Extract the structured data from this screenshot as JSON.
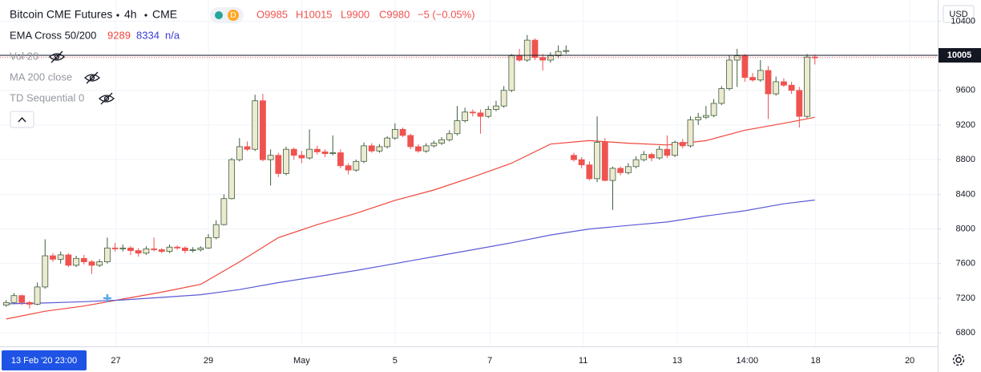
{
  "chart_data": {
    "type": "candlestick",
    "title": "Bitcoin CME Futures",
    "interval": "4h",
    "exchange": "CME",
    "badge": "D",
    "ohlc_text": [
      "O9985",
      "H10015",
      "L9900",
      "C9980",
      "−5 (−0.05%)"
    ],
    "indicators": [
      {
        "name": "EMA Cross 50/200",
        "values": [
          9289,
          8334,
          "n/a"
        ]
      },
      {
        "name": "Vol 20"
      },
      {
        "name": "MA 200 close"
      },
      {
        "name": "TD Sequential 0"
      }
    ],
    "currency": "USD",
    "last_price": 10005,
    "crosshair_label": "13 Feb '20 23:00",
    "ylim": [
      6644,
      10644
    ],
    "yticks": [
      6800,
      7200,
      7600,
      8000,
      8400,
      8800,
      9200,
      9600,
      10000,
      10400
    ],
    "xlim": [
      -0.8,
      119.8
    ],
    "xticks": [
      {
        "value": 14.1,
        "label": "27"
      },
      {
        "value": 26,
        "label": "29"
      },
      {
        "value": 38,
        "label": "May"
      },
      {
        "value": 50,
        "label": "5"
      },
      {
        "value": 62.2,
        "label": "7"
      },
      {
        "value": 74.2,
        "label": "11"
      },
      {
        "value": 86.3,
        "label": "13"
      },
      {
        "value": 95.3,
        "label": "14:00"
      },
      {
        "value": 104.1,
        "label": "18"
      },
      {
        "value": 116.2,
        "label": "20"
      }
    ],
    "grid": true,
    "up_color": "#ecead0",
    "down_color": "#ef5350",
    "ohlc": [
      [
        7120,
        7180,
        7100,
        7150
      ],
      [
        7150,
        7260,
        7140,
        7230
      ],
      [
        7230,
        7240,
        7120,
        7150
      ],
      [
        7150,
        7170,
        7080,
        7130
      ],
      [
        7130,
        7380,
        7120,
        7330
      ],
      [
        7330,
        7880,
        7310,
        7690
      ],
      [
        7690,
        7720,
        7620,
        7650
      ],
      [
        7650,
        7740,
        7600,
        7700
      ],
      [
        7700,
        7720,
        7560,
        7580
      ],
      [
        7580,
        7690,
        7560,
        7660
      ],
      [
        7660,
        7700,
        7590,
        7620
      ],
      [
        7620,
        7640,
        7480,
        7580
      ],
      [
        7580,
        7650,
        7560,
        7620
      ],
      [
        7620,
        7900,
        7600,
        7780
      ],
      [
        7780,
        7840,
        7740,
        7770
      ],
      [
        7770,
        7820,
        7740,
        7780
      ],
      [
        7780,
        7800,
        7700,
        7750
      ],
      [
        7750,
        7780,
        7680,
        7720
      ],
      [
        7720,
        7800,
        7700,
        7770
      ],
      [
        7770,
        7900,
        7740,
        7760
      ],
      [
        7760,
        7780,
        7720,
        7740
      ],
      [
        7740,
        7820,
        7720,
        7790
      ],
      [
        7790,
        7810,
        7760,
        7780
      ],
      [
        7780,
        7800,
        7720,
        7750
      ],
      [
        7750,
        7790,
        7730,
        7760
      ],
      [
        7760,
        7800,
        7740,
        7780
      ],
      [
        7780,
        7940,
        7770,
        7900
      ],
      [
        7900,
        8100,
        7880,
        8050
      ],
      [
        8050,
        8400,
        8040,
        8350
      ],
      [
        8350,
        8820,
        8340,
        8800
      ],
      [
        8800,
        9050,
        8780,
        8950
      ],
      [
        8950,
        9010,
        8900,
        8920
      ],
      [
        8920,
        9550,
        8900,
        9480
      ],
      [
        9480,
        9560,
        8780,
        8800
      ],
      [
        8800,
        8920,
        8500,
        8850
      ],
      [
        8850,
        8880,
        8600,
        8640
      ],
      [
        8640,
        8950,
        8620,
        8920
      ],
      [
        8920,
        8940,
        8800,
        8850
      ],
      [
        8850,
        8900,
        8760,
        8820
      ],
      [
        8820,
        9150,
        8800,
        8920
      ],
      [
        8920,
        8960,
        8860,
        8890
      ],
      [
        8890,
        8920,
        8830,
        8870
      ],
      [
        8870,
        9080,
        8850,
        8880
      ],
      [
        8880,
        8920,
        8700,
        8730
      ],
      [
        8730,
        8760,
        8630,
        8680
      ],
      [
        8680,
        8800,
        8660,
        8780
      ],
      [
        8780,
        9000,
        8760,
        8960
      ],
      [
        8960,
        8990,
        8880,
        8900
      ],
      [
        8900,
        8980,
        8880,
        8950
      ],
      [
        8950,
        9070,
        8930,
        9050
      ],
      [
        9050,
        9220,
        9030,
        9150
      ],
      [
        9150,
        9170,
        9060,
        9080
      ],
      [
        9080,
        9100,
        8920,
        8950
      ],
      [
        8950,
        8980,
        8880,
        8900
      ],
      [
        8900,
        8990,
        8880,
        8960
      ],
      [
        8960,
        9020,
        8940,
        8990
      ],
      [
        8990,
        9060,
        8970,
        9030
      ],
      [
        9030,
        9140,
        9010,
        9100
      ],
      [
        9100,
        9420,
        9080,
        9250
      ],
      [
        9250,
        9400,
        9230,
        9350
      ],
      [
        9350,
        9380,
        9300,
        9340
      ],
      [
        9340,
        9380,
        9100,
        9300
      ],
      [
        9300,
        9420,
        9280,
        9380
      ],
      [
        9380,
        9480,
        9360,
        9420
      ],
      [
        9420,
        9650,
        9400,
        9600
      ],
      [
        9600,
        10020,
        9580,
        10000
      ],
      [
        10000,
        10080,
        9930,
        9950
      ],
      [
        9950,
        10240,
        9930,
        10180
      ],
      [
        10180,
        10200,
        9950,
        9980
      ],
      [
        9980,
        10020,
        9830,
        9950
      ],
      [
        9950,
        10040,
        9920,
        10000
      ],
      [
        10000,
        10120,
        9970,
        10050
      ],
      [
        10050,
        10120,
        10020,
        10060
      ],
      [
        8850,
        8880,
        8780,
        8800
      ],
      [
        8800,
        8830,
        8700,
        8740
      ],
      [
        8740,
        8780,
        8560,
        8580
      ],
      [
        8580,
        9300,
        8540,
        9000
      ],
      [
        9000,
        9050,
        8550,
        8560
      ],
      [
        8560,
        8720,
        8220,
        8700
      ],
      [
        8700,
        8720,
        8620,
        8650
      ],
      [
        8650,
        8760,
        8630,
        8720
      ],
      [
        8720,
        8840,
        8700,
        8800
      ],
      [
        8800,
        8900,
        8780,
        8860
      ],
      [
        8860,
        8880,
        8780,
        8820
      ],
      [
        8820,
        8960,
        8800,
        8920
      ],
      [
        8920,
        9080,
        8820,
        8850
      ],
      [
        8850,
        9020,
        8830,
        9000
      ],
      [
        9000,
        9040,
        8930,
        8960
      ],
      [
        8960,
        9300,
        8940,
        9260
      ],
      [
        9260,
        9340,
        9200,
        9290
      ],
      [
        9290,
        9420,
        9270,
        9310
      ],
      [
        9310,
        9500,
        9290,
        9450
      ],
      [
        9450,
        9650,
        9430,
        9620
      ],
      [
        9620,
        10000,
        9600,
        9950
      ],
      [
        9950,
        10080,
        9640,
        10000
      ],
      [
        10000,
        10020,
        9700,
        9750
      ],
      [
        9750,
        9800,
        9700,
        9720
      ],
      [
        9720,
        9950,
        9700,
        9830
      ],
      [
        9830,
        9880,
        9270,
        9560
      ],
      [
        9560,
        9760,
        9540,
        9700
      ],
      [
        9700,
        9740,
        9640,
        9660
      ],
      [
        9660,
        9700,
        9560,
        9600
      ],
      [
        9600,
        9640,
        9170,
        9300
      ],
      [
        9300,
        10020,
        9280,
        9985
      ],
      [
        9985,
        10015,
        9900,
        9980
      ]
    ],
    "series": [
      {
        "color": "#f0463c",
        "x": [
          0,
          5,
          10,
          15,
          20,
          25,
          30,
          35,
          40,
          45,
          50,
          55,
          60,
          65,
          70,
          75,
          80,
          85,
          90,
          95,
          100,
          104
        ],
        "values": [
          6960,
          7050,
          7110,
          7190,
          7270,
          7360,
          7620,
          7900,
          8050,
          8180,
          8330,
          8450,
          8600,
          8760,
          8980,
          9020,
          8990,
          8970,
          9020,
          9140,
          9220,
          9289
        ]
      },
      {
        "color": "#5b5bd6",
        "x": [
          0,
          5,
          10,
          15,
          20,
          25,
          30,
          35,
          40,
          45,
          50,
          55,
          60,
          65,
          70,
          75,
          80,
          85,
          90,
          95,
          100,
          104
        ],
        "values": [
          7135,
          7145,
          7160,
          7180,
          7210,
          7240,
          7300,
          7380,
          7450,
          7520,
          7600,
          7680,
          7760,
          7840,
          7930,
          8000,
          8040,
          8080,
          8150,
          8210,
          8290,
          8334
        ]
      }
    ]
  }
}
